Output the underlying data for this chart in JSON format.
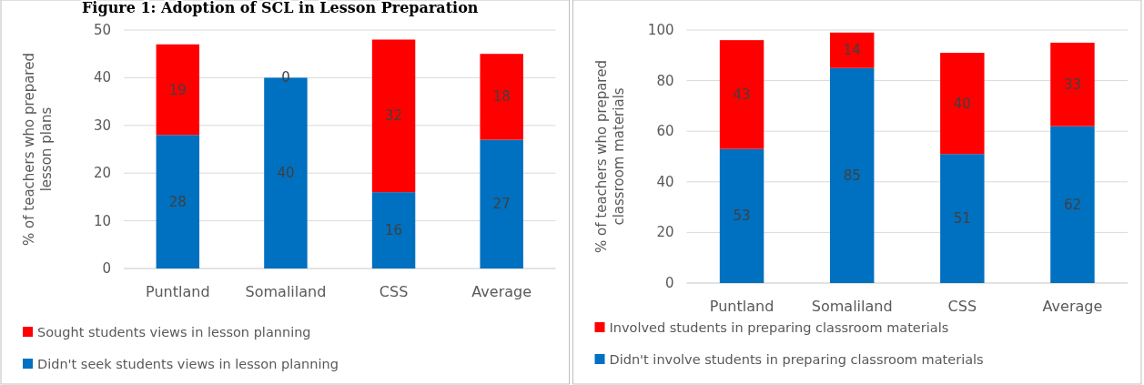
{
  "chart_data": [
    {
      "type": "bar",
      "title": "Figure 1: Adoption of SCL in Lesson Preparation",
      "ylabel": "% of teachers who prepared lesson plans",
      "categories": [
        "Puntland",
        "Somaliland",
        "CSS",
        "Average"
      ],
      "stacked": true,
      "ylim": [
        0,
        50
      ],
      "yticks": [
        0,
        10,
        20,
        30,
        40,
        50
      ],
      "grid": "y",
      "legend": "bottom",
      "data_labels": true,
      "series": [
        {
          "name": "Didn't seek students views in lesson planning",
          "color": "#0070c0",
          "values": [
            28,
            40,
            16,
            27
          ]
        },
        {
          "name": "Sought students views in lesson planning",
          "color": "#ff0000",
          "values": [
            19,
            0,
            32,
            18
          ]
        }
      ]
    },
    {
      "type": "bar",
      "ylabel": "% of teachers who prepared classroom materials",
      "categories": [
        "Puntland",
        "Somaliland",
        "CSS",
        "Average"
      ],
      "stacked": true,
      "ylim": [
        0,
        100
      ],
      "yticks": [
        0,
        20,
        40,
        60,
        80,
        100
      ],
      "grid": "y",
      "legend": "bottom",
      "data_labels": true,
      "series": [
        {
          "name": "Didn't involve students in preparing classroom materials",
          "color": "#0070c0",
          "values": [
            53,
            85,
            51,
            62
          ]
        },
        {
          "name": "Involved students in preparing classroom materials",
          "color": "#ff0000",
          "values": [
            43,
            14,
            40,
            33
          ]
        }
      ]
    }
  ]
}
